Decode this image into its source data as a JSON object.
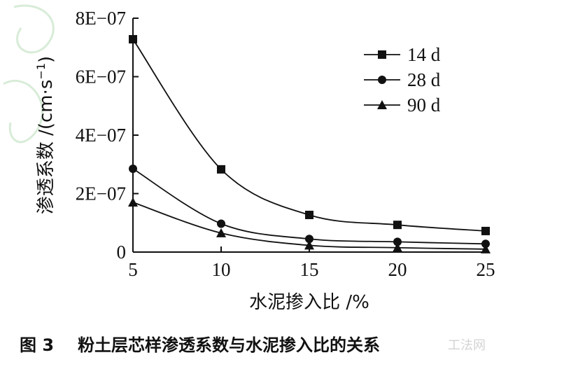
{
  "chart_data": {
    "type": "line",
    "x": [
      5,
      10,
      15,
      20,
      25
    ],
    "xlim": [
      5,
      25
    ],
    "ylim": [
      0,
      8e-07
    ],
    "xticks": [
      "5",
      "10",
      "15",
      "20",
      "25"
    ],
    "yticks": [
      "0",
      "2E−07",
      "4E−07",
      "6E−07",
      "8E−07"
    ],
    "xlabel": "水泥掺入比 /%",
    "ylabel_main": "渗透系数 /(cm·s",
    "ylabel_sup": "−1",
    "ylabel_close": ")",
    "grid": false,
    "legend_position": "top-right",
    "series": [
      {
        "name": "14 d",
        "marker": "square",
        "values": [
          7.28e-07,
          2.83e-07,
          1.27e-07,
          9.3e-08,
          7.2e-08
        ]
      },
      {
        "name": "28 d",
        "marker": "circle",
        "values": [
          2.85e-07,
          9.7e-08,
          4.5e-08,
          3.5e-08,
          2.8e-08
        ]
      },
      {
        "name": "90 d",
        "marker": "triangle",
        "values": [
          1.7e-07,
          6.5e-08,
          2.3e-08,
          1.5e-08,
          1e-08
        ]
      }
    ]
  },
  "caption": {
    "figure_number": "图 3",
    "text": "粉土层芯样渗透系数与水泥掺入比的关系"
  },
  "watermark": "工法网",
  "colors": {
    "line": "#111111",
    "watermark_deco": "#d8ecd8"
  }
}
